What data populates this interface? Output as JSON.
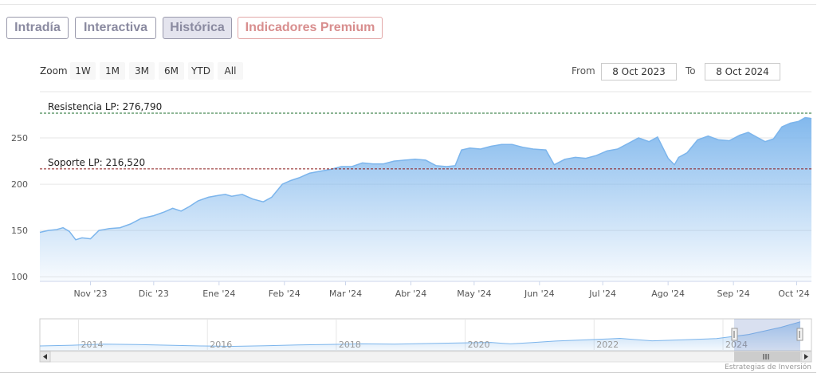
{
  "tabs": [
    {
      "label": "Intradía",
      "active": false
    },
    {
      "label": "Interactiva",
      "active": false
    },
    {
      "label": "Histórica",
      "active": true
    },
    {
      "label": "Indicadores Premium",
      "active": false
    }
  ],
  "zoom": {
    "label": "Zoom",
    "buttons": [
      "1W",
      "1M",
      "3M",
      "6M",
      "YTD",
      "All"
    ]
  },
  "range": {
    "from_label": "From",
    "from_value": "8 Oct 2023",
    "to_label": "To",
    "to_value": "8 Oct 2024"
  },
  "credits": "Estrategias de Inversión",
  "colors": {
    "line": "#7cb5ec",
    "resistance": "#1a6b2a",
    "support": "#8b1a1a"
  },
  "chart_data": {
    "type": "area",
    "title": "",
    "xlabel": "",
    "ylabel": "",
    "ylim": [
      95,
      300
    ],
    "yticks": [
      100,
      150,
      200,
      250
    ],
    "xticks": [
      "Nov '23",
      "Dic '23",
      "Ene '24",
      "Feb '24",
      "Mar '24",
      "Abr '24",
      "May '24",
      "Jun '24",
      "Jul '24",
      "Ago '24",
      "Sep '24",
      "Oct '24"
    ],
    "xrange": [
      "2023-10-08",
      "2024-10-08"
    ],
    "series": [
      {
        "x": [
          "2023-10-08",
          "2023-10-12",
          "2023-10-16",
          "2023-10-19",
          "2023-10-22",
          "2023-10-25",
          "2023-10-28",
          "2023-11-01",
          "2023-11-05",
          "2023-11-10",
          "2023-11-15",
          "2023-11-20",
          "2023-11-25",
          "2023-12-01",
          "2023-12-06",
          "2023-12-10",
          "2023-12-14",
          "2023-12-18",
          "2023-12-22",
          "2023-12-27",
          "2024-01-01",
          "2024-01-04",
          "2024-01-07",
          "2024-01-12",
          "2024-01-17",
          "2024-01-22",
          "2024-01-26",
          "2024-01-31",
          "2024-02-04",
          "2024-02-08",
          "2024-02-13",
          "2024-02-18",
          "2024-02-23",
          "2024-02-28",
          "2024-03-04",
          "2024-03-09",
          "2024-03-14",
          "2024-03-19",
          "2024-03-24",
          "2024-03-29",
          "2024-04-03",
          "2024-04-08",
          "2024-04-13",
          "2024-04-18",
          "2024-04-22",
          "2024-04-25",
          "2024-04-29",
          "2024-05-04",
          "2024-05-09",
          "2024-05-14",
          "2024-05-19",
          "2024-05-24",
          "2024-05-29",
          "2024-06-04",
          "2024-06-08",
          "2024-06-13",
          "2024-06-18",
          "2024-06-23",
          "2024-06-28",
          "2024-07-03",
          "2024-07-08",
          "2024-07-13",
          "2024-07-18",
          "2024-07-23",
          "2024-07-27",
          "2024-08-01",
          "2024-08-04",
          "2024-08-06",
          "2024-08-10",
          "2024-08-15",
          "2024-08-20",
          "2024-08-25",
          "2024-08-30",
          "2024-09-04",
          "2024-09-08",
          "2024-09-12",
          "2024-09-16",
          "2024-09-20",
          "2024-09-24",
          "2024-09-28",
          "2024-10-02",
          "2024-10-05",
          "2024-10-08"
        ],
        "y": [
          148,
          150,
          151,
          153,
          149,
          140,
          142,
          141,
          150,
          152,
          153,
          157,
          163,
          166,
          170,
          174,
          171,
          176,
          182,
          186,
          188,
          189,
          187,
          189,
          184,
          181,
          186,
          200,
          204,
          207,
          212,
          214,
          216,
          219,
          219,
          223,
          222,
          222,
          225,
          226,
          227,
          226,
          220,
          219,
          220,
          237,
          239,
          238,
          241,
          243,
          243,
          240,
          238,
          237,
          221,
          227,
          229,
          228,
          231,
          236,
          238,
          244,
          250,
          246,
          251,
          228,
          221,
          229,
          234,
          248,
          252,
          248,
          247,
          253,
          256,
          251,
          246,
          249,
          262,
          266,
          268,
          272,
          271
        ]
      }
    ],
    "annotations": [
      {
        "label": "Resistencia LP: 276,790",
        "y": 276.79
      },
      {
        "label": "Soporte LP: 216,520",
        "y": 216.52
      }
    ],
    "navigator": {
      "xticks": [
        "2014",
        "2016",
        "2018",
        "2020",
        "2022",
        "2024"
      ],
      "x": [
        2013.0,
        2013.5,
        2014.0,
        2014.5,
        2015.0,
        2015.5,
        2016.0,
        2016.5,
        2017.0,
        2017.5,
        2018.0,
        2018.5,
        2019.0,
        2019.5,
        2020.0,
        2020.3,
        2020.6,
        2021.0,
        2021.5,
        2021.8,
        2022.0,
        2022.5,
        2023.0,
        2023.5,
        2024.0,
        2024.5,
        2024.8
      ],
      "y": [
        95,
        100,
        108,
        105,
        100,
        95,
        92,
        96,
        102,
        106,
        110,
        108,
        112,
        116,
        120,
        110,
        118,
        130,
        140,
        145,
        150,
        132,
        140,
        148,
        178,
        230,
        270
      ]
    }
  }
}
